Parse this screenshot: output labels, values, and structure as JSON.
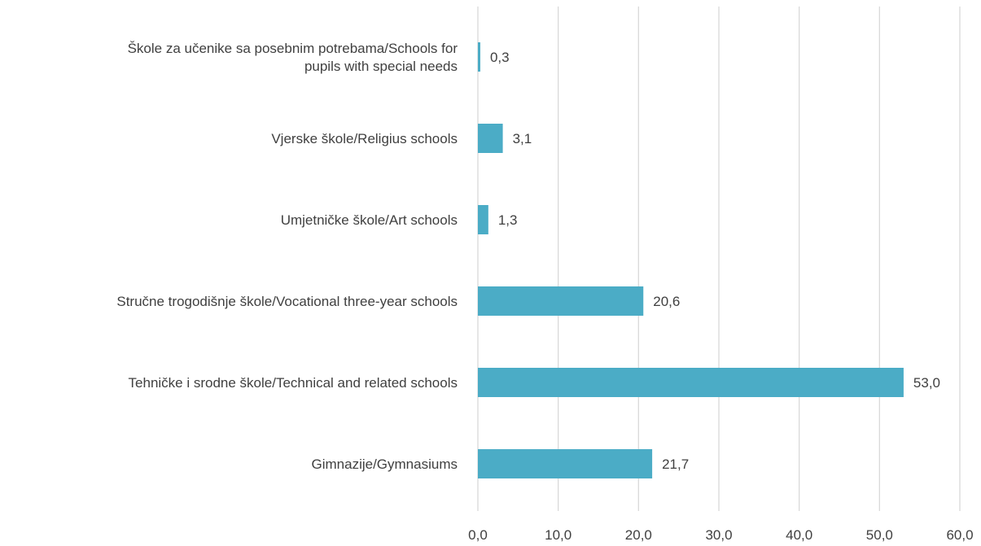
{
  "chart_data": {
    "type": "bar",
    "orientation": "horizontal",
    "categories": [
      [
        "Škole za učenike sa posebnim potrebama/Schools for",
        "pupils with special needs"
      ],
      [
        "Vjerske škole/Religius schools"
      ],
      [
        "Umjetničke škole/Art schools"
      ],
      [
        "Stručne trogodišnje  škole/Vocational three-year schools"
      ],
      [
        "Tehničke i srodne škole/Technical and related schools"
      ],
      [
        "Gimnazije/Gymnasiums"
      ]
    ],
    "values": [
      0.3,
      3.1,
      1.3,
      20.6,
      53.0,
      21.7
    ],
    "value_labels": [
      "0,3",
      "3,1",
      "1,3",
      "20,6",
      "53,0",
      "21,7"
    ],
    "xlim": [
      0,
      60
    ],
    "xticks": [
      0,
      10,
      20,
      30,
      40,
      50,
      60
    ],
    "xtick_labels": [
      "0,0",
      "10,0",
      "20,0",
      "30,0",
      "40,0",
      "50,0",
      "60,0"
    ],
    "grid": "vertical",
    "bar_color": "#4bacc6",
    "grid_color": "#d9d9d9",
    "text_color": "#404040"
  }
}
